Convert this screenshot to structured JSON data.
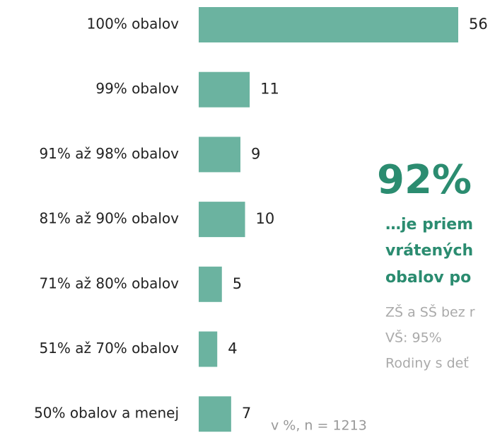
{
  "chart_data": {
    "type": "bar",
    "orientation": "horizontal",
    "categories": [
      "100% obalov",
      "99% obalov",
      "91% až 98% obalov",
      "81% až 90% obalov",
      "71% až 80% obalov",
      "51% až 70% obalov",
      "50% obalov a menej"
    ],
    "values": [
      56,
      11,
      9,
      10,
      5,
      4,
      7
    ],
    "color": "#6bb3a0",
    "note": "v %, n = 1213",
    "annotation": {
      "headline": "92%",
      "lines": [
        "…je priem",
        "vrátených",
        "obalov po"
      ],
      "details": [
        "ZŠ a SŠ bez r",
        "VŠ: 95%",
        "Rodiny s deť"
      ]
    }
  }
}
